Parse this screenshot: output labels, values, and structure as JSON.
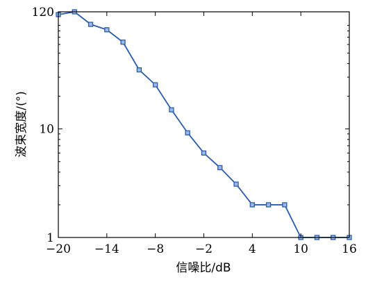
{
  "chart_data": {
    "type": "line",
    "title": "",
    "xlabel": "信噪比/dB",
    "ylabel": "波束宽度/(°)",
    "xlim": [
      -20,
      16
    ],
    "ylim": [
      1,
      120
    ],
    "y_scale": "log",
    "xticks": [
      -20,
      -14,
      -8,
      -2,
      4,
      10,
      16
    ],
    "xtick_labels": [
      "−20",
      "−14",
      "−8",
      "−2",
      "4",
      "10",
      "16"
    ],
    "yticks": [
      1,
      10,
      120
    ],
    "ytick_labels": [
      "1",
      "10",
      "120"
    ],
    "grid": false,
    "legend": "none",
    "series": [
      {
        "color": "#2a5caa",
        "marker": "square",
        "x": [
          -20,
          -18,
          -16,
          -14,
          -12,
          -10,
          -8,
          -6,
          -4,
          -2,
          0,
          2,
          4,
          6,
          8,
          10,
          12,
          14,
          16
        ],
        "y": [
          113,
          120,
          92,
          82,
          63,
          35,
          25.5,
          15,
          9.2,
          6,
          4.4,
          3.1,
          2,
          2,
          2,
          1,
          1,
          1,
          1
        ]
      }
    ]
  }
}
